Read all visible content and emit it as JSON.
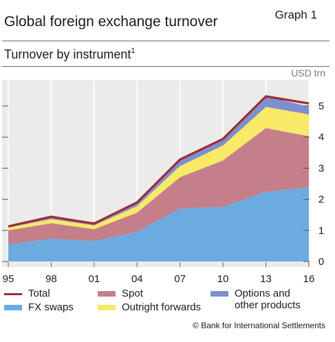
{
  "header": {
    "title": "Global foreign exchange turnover",
    "graph_label": "Graph 1",
    "subtitle": "Turnover by instrument",
    "subtitle_note": "1",
    "unit": "USD trn"
  },
  "footer": {
    "text": "© Bank for International Settlements"
  },
  "colors": {
    "fx_swaps": "#6cabe0",
    "spot": "#c47f8a",
    "outright_forwards": "#f8e966",
    "options": "#7d8fcf",
    "total": "#a02a34",
    "background": "#ebebeb",
    "grid": "#ffffff"
  },
  "chart_data": {
    "type": "area",
    "stacked": true,
    "categories": [
      "95",
      "98",
      "01",
      "04",
      "07",
      "10",
      "13",
      "16"
    ],
    "x": [
      1995,
      1998,
      2001,
      2004,
      2007,
      2010,
      2013,
      2016
    ],
    "series": [
      {
        "name": "FX swaps",
        "values": [
          0.55,
          0.73,
          0.66,
          0.95,
          1.7,
          1.76,
          2.24,
          2.38
        ]
      },
      {
        "name": "Spot",
        "values": [
          0.45,
          0.5,
          0.38,
          0.62,
          1.01,
          1.49,
          2.05,
          1.65
        ]
      },
      {
        "name": "Outright forwards",
        "values": [
          0.09,
          0.13,
          0.12,
          0.21,
          0.36,
          0.48,
          0.68,
          0.7
        ]
      },
      {
        "name": "Options and other products",
        "values": [
          0.04,
          0.08,
          0.06,
          0.12,
          0.21,
          0.21,
          0.34,
          0.25
        ]
      }
    ],
    "total": {
      "name": "Total",
      "values": [
        1.13,
        1.44,
        1.22,
        1.9,
        3.28,
        3.94,
        5.31,
        5.08
      ]
    },
    "yticks": [
      "0",
      "1",
      "2",
      "3",
      "4",
      "5"
    ],
    "ylim": [
      0,
      5.5
    ],
    "ylabel": "USD trn",
    "grid": "vertical",
    "legend_position": "bottom"
  },
  "legend": {
    "total": "Total",
    "fx_swaps": "FX swaps",
    "spot": "Spot",
    "outright_forwards": "Outright forwards",
    "options_line1": "Options and",
    "options_line2": "other products"
  }
}
